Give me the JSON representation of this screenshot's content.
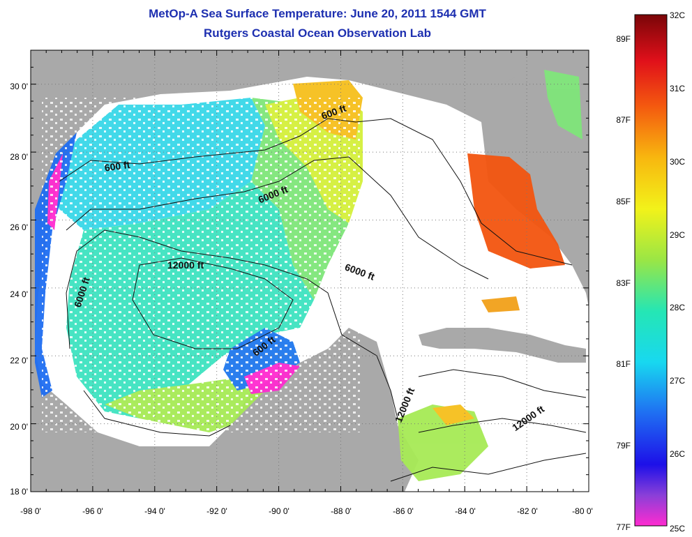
{
  "title": "MetOp-A Sea Surface Temperature:  June 20, 2011 1544 GMT",
  "subtitle": "Rutgers Coastal Ocean Observation Lab",
  "map": {
    "lon_ticks": [
      "-98 0'",
      "-96 0'",
      "-94 0'",
      "-92 0'",
      "-90 0'",
      "-88 0'",
      "-86 0'",
      "-84 0'",
      "-82 0'",
      "-80 0'"
    ],
    "lat_ticks": [
      "18 0'",
      "20 0'",
      "22 0'",
      "24 0'",
      "26 0'",
      "28 0'",
      "30 0'"
    ],
    "lon_range": [
      -98,
      -80
    ],
    "lat_range": [
      18,
      31
    ],
    "grid": "dotted",
    "contour_labels": [
      "600 ft",
      "600 ft",
      "6000 ft",
      "12000 ft",
      "6000 ft",
      "6000 ft",
      "600 ft",
      "12000 ft",
      "12000 ft"
    ],
    "colors": {
      "land": "#a9a9a9",
      "water_no_data": "#ffffff"
    }
  },
  "colorbar": {
    "celsius_labels": [
      "32C",
      "31C",
      "30C",
      "29C",
      "28C",
      "27C",
      "26C",
      "25C"
    ],
    "fahrenheit_labels": [
      "89F",
      "87F",
      "85F",
      "83F",
      "81F",
      "79F",
      "77F"
    ],
    "range_c": [
      25,
      32
    ]
  }
}
